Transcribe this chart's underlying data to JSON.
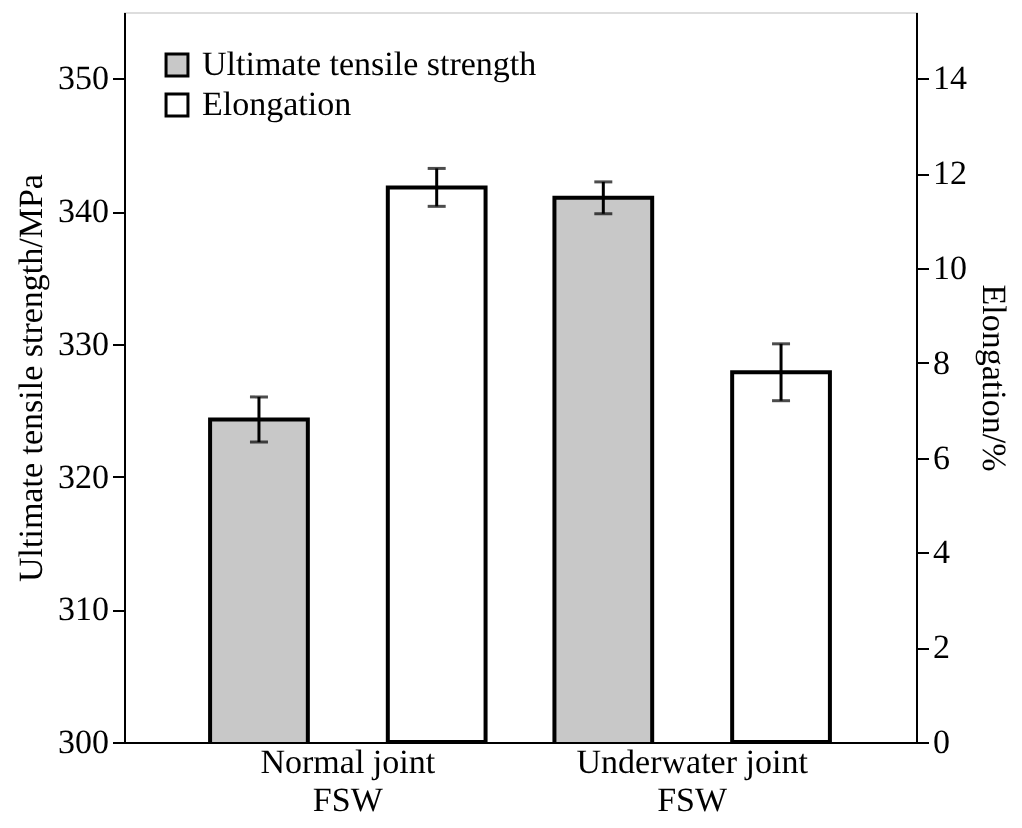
{
  "chart_data": {
    "type": "bar",
    "categories": [
      "Normal joint FSW",
      "Underwater joint FSW"
    ],
    "series": [
      {
        "name": "Ultimate tensile strength",
        "color": "#c8c8c8",
        "values": [
          324.3,
          341.0
        ],
        "errors": [
          1.7,
          1.2
        ]
      },
      {
        "name": "Elongation",
        "color": "#ffffff",
        "values": [
          11.7,
          7.8
        ],
        "errors": [
          0.4,
          0.6
        ],
        "axis": "y2"
      }
    ],
    "ylabel": "Ultimate tensile strength/MPa",
    "y2label": "Elongation/%",
    "ylim": [
      300,
      355
    ],
    "yticks": [
      300,
      310,
      320,
      330,
      340,
      350
    ],
    "y2lim": [
      0,
      15.4
    ],
    "y2ticks": [
      0,
      2,
      4,
      6,
      8,
      10,
      12,
      14
    ],
    "legend": "top left",
    "grid": false
  }
}
